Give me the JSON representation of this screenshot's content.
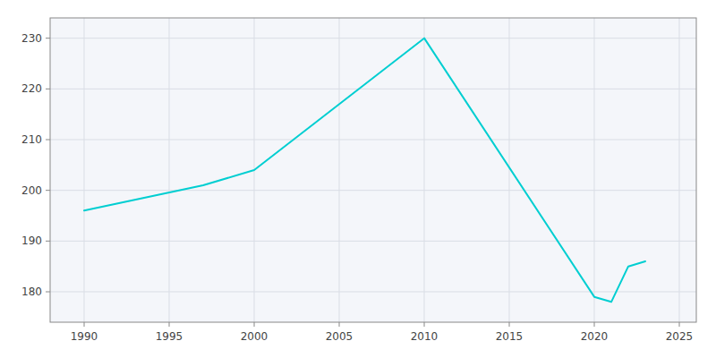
{
  "chart_data": {
    "type": "line",
    "x": [
      1990,
      1997,
      2000,
      2010,
      2020,
      2021,
      2022,
      2023
    ],
    "values": [
      196,
      201,
      204,
      230,
      179,
      178,
      185,
      186
    ],
    "color": "#00CED1",
    "xlim": [
      1988,
      2026
    ],
    "ylim": [
      174,
      234
    ],
    "xticks": [
      1990,
      1995,
      2000,
      2005,
      2010,
      2015,
      2020,
      2025
    ],
    "yticks": [
      180,
      190,
      200,
      210,
      220,
      230
    ],
    "grid": true
  }
}
